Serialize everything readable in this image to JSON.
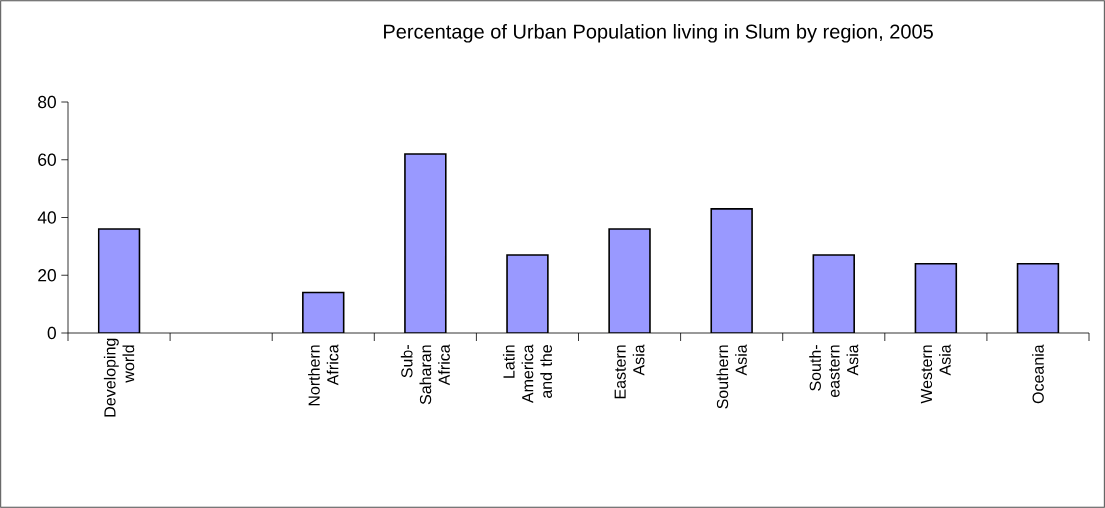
{
  "chart_data": {
    "type": "bar",
    "title": "Percentage of Urban Population living in Slum by region, 2005",
    "categories": [
      "Developing world",
      null,
      "Northern Africa",
      "Sub-Saharan Africa",
      "Latin America and the",
      "Eastern Asia",
      "Southern Asia",
      "South-eastern Asia",
      "Western Asia",
      "Oceania"
    ],
    "values": [
      36,
      null,
      14,
      62,
      27,
      36,
      43,
      27,
      24,
      24
    ],
    "color": "#9999ff",
    "ylim": [
      0,
      80
    ],
    "yticks": [
      0,
      20,
      40,
      60,
      80
    ],
    "grid": false
  }
}
